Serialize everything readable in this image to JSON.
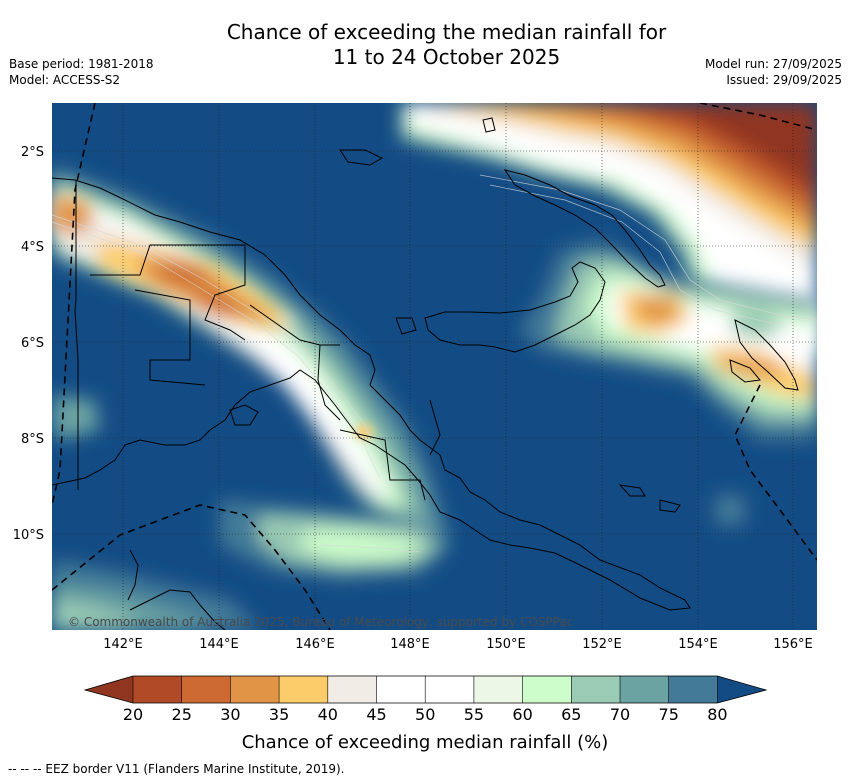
{
  "title": {
    "line1": "Chance of exceeding the median rainfall for",
    "line2": "11 to 24 October 2025"
  },
  "meta_left": {
    "base_period": "Base period: 1981-2018",
    "model": "Model: ACCESS-S2"
  },
  "meta_right": {
    "model_run": "Model run: 27/09/2025",
    "issued": "Issued: 29/09/2025"
  },
  "map": {
    "lat_labels": [
      "2°S",
      "4°S",
      "6°S",
      "8°S",
      "10°S"
    ],
    "lon_labels": [
      "142°E",
      "144°E",
      "146°E",
      "148°E",
      "150°E",
      "152°E",
      "154°E",
      "156°E"
    ],
    "copyright": "© Commonwealth of Australia 2025, Bureau of Meteorology, supported by COSPPac"
  },
  "colorbar": {
    "title": "Chance of exceeding median rainfall (%)",
    "ticks": [
      "20",
      "25",
      "30",
      "35",
      "40",
      "45",
      "50",
      "55",
      "60",
      "65",
      "70",
      "75",
      "80"
    ],
    "colors": {
      "below_20": "#8f3520",
      "c20_25": "#b04a27",
      "c25_30": "#cd6a33",
      "c30_35": "#e19446",
      "c35_40": "#fdcc6a",
      "c40_45": "#f1ece6",
      "c45_50": "#ffffff",
      "c50_55": "#ffffff",
      "c55_60": "#edf7e8",
      "c60_65": "#cdfdcb",
      "c65_70": "#9acbb4",
      "c70_75": "#6ba3a3",
      "c75_80": "#437a98",
      "above_80": "#134c85"
    }
  },
  "footnote": "-- -- -- EEZ border V11 (Flanders Marine Institute, 2019)."
}
